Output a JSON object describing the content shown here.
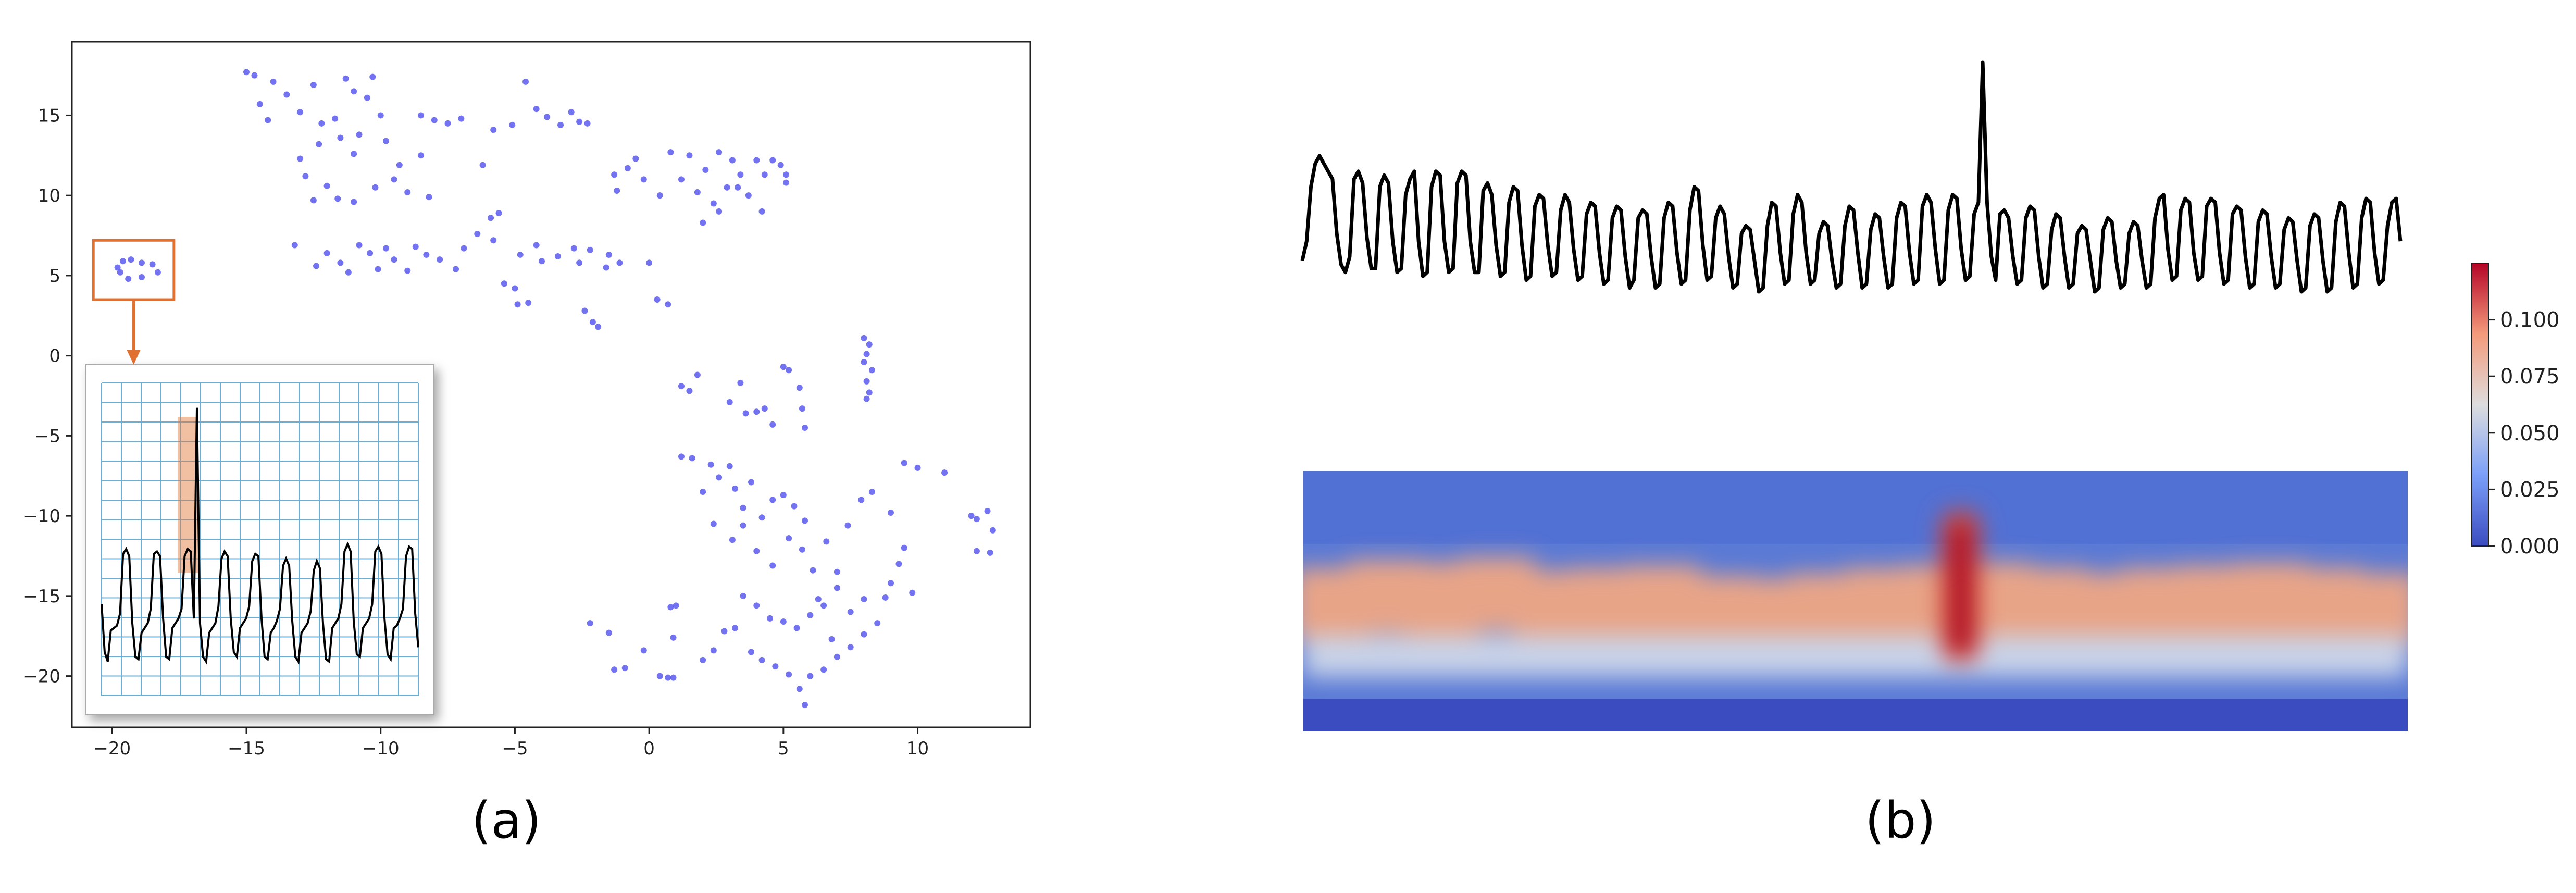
{
  "panel_labels": {
    "a": "(a)",
    "b": "(b)"
  },
  "colors": {
    "points": "#5b5bf0",
    "highlight": "#e07030",
    "line": "#000000",
    "heat_low": "#3b4cc0",
    "heat_mid": "#dddddd",
    "heat_high": "#b40426",
    "grid_inset": "#6aaed6"
  },
  "chart_data": [
    {
      "id": "a-scatter",
      "type": "scatter",
      "title": "",
      "xlabel": "",
      "ylabel": "",
      "xlim": [
        -21.5,
        14.2
      ],
      "ylim": [
        -23.2,
        19.6
      ],
      "xticks": [
        -20,
        -15,
        -10,
        -5,
        0,
        5,
        10
      ],
      "yticks": [
        15,
        10,
        5,
        0,
        -5,
        -10,
        -15,
        -20
      ],
      "xtick_labels": [
        "−20",
        "−15",
        "−10",
        "−5",
        "0",
        "5",
        "10"
      ],
      "ytick_labels": [
        "15",
        "10",
        "5",
        "0",
        "−5",
        "−10",
        "−15",
        "−20"
      ],
      "grid": false,
      "highlight_box": {
        "x": [
          -20.7,
          -17.7
        ],
        "y": [
          3.5,
          7.2
        ]
      },
      "points": [
        [
          -15.0,
          17.7
        ],
        [
          -14.7,
          17.5
        ],
        [
          -14.0,
          17.1
        ],
        [
          -14.5,
          15.7
        ],
        [
          -13.5,
          16.3
        ],
        [
          -12.5,
          16.9
        ],
        [
          -11.3,
          17.3
        ],
        [
          -10.3,
          17.4
        ],
        [
          -11.0,
          16.5
        ],
        [
          -10.5,
          16.1
        ],
        [
          -13.0,
          15.2
        ],
        [
          -14.2,
          14.7
        ],
        [
          -12.2,
          14.5
        ],
        [
          -11.7,
          14.8
        ],
        [
          -10.0,
          15.0
        ],
        [
          -10.8,
          13.8
        ],
        [
          -8.5,
          15.0
        ],
        [
          -8.0,
          14.7
        ],
        [
          -7.5,
          14.5
        ],
        [
          -7.0,
          14.8
        ],
        [
          -12.3,
          13.2
        ],
        [
          -11.5,
          13.6
        ],
        [
          -11.0,
          12.6
        ],
        [
          -9.8,
          13.4
        ],
        [
          -9.3,
          11.9
        ],
        [
          -8.5,
          12.5
        ],
        [
          -13.0,
          12.3
        ],
        [
          -12.8,
          11.2
        ],
        [
          -12.0,
          10.6
        ],
        [
          -11.6,
          9.8
        ],
        [
          -12.5,
          9.7
        ],
        [
          -11.0,
          9.6
        ],
        [
          -10.2,
          10.5
        ],
        [
          -9.5,
          11.0
        ],
        [
          -9.0,
          10.2
        ],
        [
          -8.2,
          9.9
        ],
        [
          -6.2,
          11.9
        ],
        [
          -5.9,
          8.6
        ],
        [
          -5.6,
          8.9
        ],
        [
          -5.1,
          14.4
        ],
        [
          -4.6,
          17.1
        ],
        [
          -4.2,
          15.4
        ],
        [
          -3.8,
          14.9
        ],
        [
          -3.3,
          14.4
        ],
        [
          -2.9,
          15.2
        ],
        [
          -2.6,
          14.6
        ],
        [
          -2.3,
          14.5
        ],
        [
          -5.8,
          14.1
        ],
        [
          -13.2,
          6.9
        ],
        [
          -12.4,
          5.6
        ],
        [
          -12.0,
          6.4
        ],
        [
          -11.5,
          5.8
        ],
        [
          -11.2,
          5.2
        ],
        [
          -10.8,
          6.9
        ],
        [
          -10.4,
          6.4
        ],
        [
          -10.1,
          5.4
        ],
        [
          -9.8,
          6.7
        ],
        [
          -9.5,
          6.0
        ],
        [
          -9.0,
          5.3
        ],
        [
          -8.7,
          6.8
        ],
        [
          -8.3,
          6.3
        ],
        [
          -7.8,
          6.0
        ],
        [
          -7.2,
          5.4
        ],
        [
          -6.9,
          6.7
        ],
        [
          -6.4,
          7.6
        ],
        [
          -5.8,
          7.2
        ],
        [
          -4.8,
          6.3
        ],
        [
          -4.2,
          6.9
        ],
        [
          -4.0,
          5.9
        ],
        [
          -3.4,
          6.2
        ],
        [
          -2.8,
          6.7
        ],
        [
          -2.6,
          5.8
        ],
        [
          -2.2,
          6.6
        ],
        [
          -1.6,
          5.5
        ],
        [
          -1.5,
          6.3
        ],
        [
          -1.1,
          5.8
        ],
        [
          -5.4,
          4.5
        ],
        [
          -5.0,
          4.2
        ],
        [
          -4.9,
          3.2
        ],
        [
          -4.5,
          3.3
        ],
        [
          -2.4,
          2.8
        ],
        [
          -2.1,
          2.1
        ],
        [
          -1.9,
          1.8
        ],
        [
          0.0,
          5.8
        ],
        [
          0.3,
          3.5
        ],
        [
          0.7,
          3.2
        ],
        [
          -1.3,
          11.3
        ],
        [
          -1.2,
          10.3
        ],
        [
          -0.8,
          11.7
        ],
        [
          -0.5,
          12.3
        ],
        [
          -0.2,
          11.0
        ],
        [
          0.4,
          10.0
        ],
        [
          0.8,
          12.7
        ],
        [
          1.2,
          11.0
        ],
        [
          1.5,
          12.5
        ],
        [
          1.8,
          10.2
        ],
        [
          2.1,
          11.6
        ],
        [
          2.4,
          9.5
        ],
        [
          2.6,
          12.7
        ],
        [
          2.9,
          10.5
        ],
        [
          3.1,
          12.2
        ],
        [
          3.4,
          11.3
        ],
        [
          3.7,
          10.0
        ],
        [
          4.0,
          12.2
        ],
        [
          4.3,
          11.3
        ],
        [
          4.6,
          12.2
        ],
        [
          4.9,
          11.9
        ],
        [
          5.1,
          11.3
        ],
        [
          2.0,
          8.3
        ],
        [
          2.6,
          9.0
        ],
        [
          3.3,
          10.5
        ],
        [
          4.2,
          9.0
        ],
        [
          5.1,
          10.8
        ],
        [
          1.2,
          -1.9
        ],
        [
          1.5,
          -2.2
        ],
        [
          1.8,
          -1.2
        ],
        [
          3.0,
          -2.9
        ],
        [
          3.4,
          -1.7
        ],
        [
          3.6,
          -3.6
        ],
        [
          4.0,
          -3.5
        ],
        [
          4.3,
          -3.3
        ],
        [
          4.6,
          -4.3
        ],
        [
          5.0,
          -0.7
        ],
        [
          5.2,
          -0.9
        ],
        [
          5.6,
          -2.0
        ],
        [
          5.7,
          -3.3
        ],
        [
          5.8,
          -4.5
        ],
        [
          8.0,
          1.1
        ],
        [
          8.2,
          0.7
        ],
        [
          8.1,
          0.1
        ],
        [
          8.0,
          -0.4
        ],
        [
          8.3,
          -0.9
        ],
        [
          8.1,
          -1.6
        ],
        [
          8.2,
          -2.3
        ],
        [
          8.1,
          -2.7
        ],
        [
          1.2,
          -6.3
        ],
        [
          1.6,
          -6.4
        ],
        [
          2.0,
          -8.5
        ],
        [
          2.3,
          -6.8
        ],
        [
          2.6,
          -7.6
        ],
        [
          3.0,
          -6.9
        ],
        [
          3.2,
          -8.3
        ],
        [
          3.5,
          -9.5
        ],
        [
          3.8,
          -7.9
        ],
        [
          4.2,
          -10.1
        ],
        [
          4.6,
          -9.0
        ],
        [
          5.0,
          -8.7
        ],
        [
          5.4,
          -9.4
        ],
        [
          5.8,
          -10.3
        ],
        [
          2.4,
          -10.5
        ],
        [
          3.1,
          -11.5
        ],
        [
          3.5,
          -10.6
        ],
        [
          4.0,
          -12.2
        ],
        [
          4.6,
          -13.1
        ],
        [
          5.2,
          -11.4
        ],
        [
          5.7,
          -12.1
        ],
        [
          6.1,
          -13.4
        ],
        [
          6.6,
          -11.6
        ],
        [
          7.0,
          -13.5
        ],
        [
          7.4,
          -10.6
        ],
        [
          7.9,
          -9.0
        ],
        [
          8.3,
          -8.5
        ],
        [
          9.5,
          -6.7
        ],
        [
          10.0,
          -7.0
        ],
        [
          11.0,
          -7.3
        ],
        [
          9.0,
          -9.8
        ],
        [
          9.5,
          -12.0
        ],
        [
          9.3,
          -13.0
        ],
        [
          9.0,
          -14.2
        ],
        [
          9.8,
          -14.8
        ],
        [
          8.8,
          -15.1
        ],
        [
          8.5,
          -16.7
        ],
        [
          8.0,
          -17.4
        ],
        [
          7.5,
          -18.2
        ],
        [
          7.0,
          -18.8
        ],
        [
          6.5,
          -19.6
        ],
        [
          6.0,
          -20.0
        ],
        [
          5.6,
          -20.8
        ],
        [
          5.2,
          -19.9
        ],
        [
          4.7,
          -19.4
        ],
        [
          4.2,
          -19.0
        ],
        [
          3.8,
          -18.5
        ],
        [
          3.2,
          -17.0
        ],
        [
          2.8,
          -17.2
        ],
        [
          2.4,
          -18.4
        ],
        [
          2.0,
          -19.0
        ],
        [
          3.5,
          -15.0
        ],
        [
          4.0,
          -15.6
        ],
        [
          4.5,
          -16.4
        ],
        [
          5.0,
          -16.6
        ],
        [
          5.5,
          -17.0
        ],
        [
          6.0,
          -16.2
        ],
        [
          6.5,
          -15.6
        ],
        [
          7.0,
          -14.5
        ],
        [
          7.5,
          -16.0
        ],
        [
          8.0,
          -15.2
        ],
        [
          6.3,
          -15.2
        ],
        [
          6.8,
          -17.7
        ],
        [
          5.8,
          -21.8
        ],
        [
          1.0,
          -15.6
        ],
        [
          0.8,
          -15.7
        ],
        [
          0.9,
          -17.6
        ],
        [
          -2.2,
          -16.7
        ],
        [
          -1.5,
          -17.3
        ],
        [
          -1.3,
          -19.6
        ],
        [
          -0.9,
          -19.5
        ],
        [
          -0.2,
          -18.4
        ],
        [
          0.4,
          -20.0
        ],
        [
          0.7,
          -20.1
        ],
        [
          0.9,
          -20.1
        ],
        [
          12.0,
          -10.0
        ],
        [
          12.2,
          -10.2
        ],
        [
          12.6,
          -9.7
        ],
        [
          12.2,
          -12.2
        ],
        [
          12.7,
          -12.3
        ],
        [
          12.8,
          -10.9
        ]
      ],
      "cluster_points": [
        [
          -19.8,
          5.5
        ],
        [
          -19.6,
          5.9
        ],
        [
          -19.3,
          6.0
        ],
        [
          -18.9,
          5.8
        ],
        [
          -18.5,
          5.7
        ],
        [
          -18.3,
          5.2
        ],
        [
          -18.9,
          4.9
        ],
        [
          -19.4,
          4.8
        ],
        [
          -19.7,
          5.2
        ]
      ],
      "inset": {
        "type": "line",
        "ylim": [
          -1.2,
          5.0
        ],
        "highlight_x_range": [
          0.24,
          0.305
        ],
        "values": [
          0.6,
          -0.4,
          -0.6,
          0.05,
          0.1,
          0.15,
          0.4,
          1.65,
          1.75,
          1.6,
          0.2,
          -0.5,
          -0.55,
          0.0,
          0.1,
          0.2,
          0.5,
          1.65,
          1.7,
          1.6,
          0.3,
          -0.5,
          -0.55,
          0.1,
          0.2,
          0.3,
          0.5,
          1.6,
          1.75,
          1.7,
          0.3,
          4.7,
          0.2,
          -0.5,
          -0.6,
          0.0,
          0.1,
          0.2,
          0.55,
          1.55,
          1.7,
          1.6,
          0.3,
          -0.4,
          -0.5,
          0.1,
          0.2,
          0.3,
          0.55,
          1.5,
          1.65,
          1.6,
          0.3,
          -0.5,
          -0.55,
          0.0,
          0.1,
          0.25,
          0.5,
          1.4,
          1.55,
          1.4,
          0.25,
          -0.5,
          -0.6,
          0.0,
          0.1,
          0.2,
          0.45,
          1.3,
          1.5,
          1.35,
          0.2,
          -0.55,
          -0.6,
          0.1,
          0.2,
          0.3,
          0.6,
          1.7,
          1.85,
          1.7,
          0.25,
          -0.45,
          -0.5,
          0.1,
          0.2,
          0.3,
          0.6,
          1.7,
          1.8,
          1.65,
          0.3,
          -0.45,
          -0.55,
          0.1,
          0.15,
          0.3,
          0.5,
          1.6,
          1.8,
          1.75,
          0.4,
          -0.3
        ]
      }
    },
    {
      "id": "b-signal",
      "type": "line",
      "title": "",
      "xlabel": "",
      "ylabel": "",
      "values": [
        0.5,
        1.0,
        2.4,
        3.0,
        3.2,
        3.0,
        2.8,
        2.6,
        1.2,
        0.4,
        0.2,
        0.6,
        2.6,
        2.8,
        2.5,
        1.1,
        0.3,
        0.3,
        2.4,
        2.7,
        2.5,
        1.0,
        0.2,
        0.3,
        2.2,
        2.6,
        2.8,
        1.0,
        0.1,
        0.2,
        2.4,
        2.8,
        2.7,
        1.0,
        0.2,
        0.3,
        2.5,
        2.8,
        2.7,
        1.0,
        0.2,
        0.2,
        2.3,
        2.5,
        2.2,
        0.9,
        0.1,
        0.2,
        2.0,
        2.4,
        2.3,
        0.9,
        0.0,
        0.1,
        1.9,
        2.2,
        2.1,
        0.9,
        0.1,
        0.2,
        1.8,
        2.2,
        2.0,
        0.8,
        0.0,
        0.1,
        1.7,
        2.0,
        1.9,
        0.7,
        -0.1,
        0.0,
        1.6,
        1.9,
        1.8,
        0.6,
        -0.2,
        0.0,
        1.6,
        1.8,
        1.7,
        0.6,
        -0.2,
        -0.1,
        1.6,
        2.0,
        1.9,
        0.7,
        -0.1,
        0.0,
        1.8,
        2.4,
        2.3,
        0.9,
        0.0,
        0.1,
        1.6,
        1.9,
        1.7,
        0.6,
        -0.2,
        -0.1,
        1.2,
        1.4,
        1.3,
        0.5,
        -0.3,
        -0.2,
        1.4,
        2.0,
        1.9,
        0.7,
        -0.1,
        0.0,
        1.7,
        2.2,
        2.0,
        0.7,
        -0.1,
        0.0,
        1.2,
        1.5,
        1.4,
        0.5,
        -0.2,
        -0.1,
        1.4,
        1.9,
        1.8,
        0.7,
        -0.2,
        -0.1,
        1.3,
        1.7,
        1.6,
        0.6,
        -0.2,
        -0.1,
        1.6,
        2.0,
        1.9,
        0.7,
        -0.1,
        0.0,
        1.9,
        2.2,
        2.0,
        0.8,
        -0.1,
        0.0,
        1.8,
        2.2,
        2.1,
        0.8,
        0.0,
        0.1,
        1.7,
        2.0,
        5.6,
        2.0,
        0.6,
        0.0,
        1.7,
        1.8,
        1.6,
        0.6,
        -0.1,
        0.0,
        1.6,
        1.9,
        1.8,
        0.6,
        -0.2,
        -0.1,
        1.3,
        1.7,
        1.6,
        0.6,
        -0.2,
        -0.1,
        1.2,
        1.4,
        1.3,
        0.5,
        -0.3,
        -0.2,
        1.3,
        1.6,
        1.5,
        0.5,
        -0.2,
        -0.1,
        1.2,
        1.5,
        1.4,
        0.5,
        -0.2,
        -0.1,
        1.6,
        2.1,
        2.2,
        0.8,
        0.0,
        0.1,
        1.8,
        2.1,
        2.0,
        0.7,
        0.0,
        0.1,
        1.9,
        2.1,
        2.0,
        0.7,
        -0.1,
        0.0,
        1.7,
        1.9,
        1.8,
        0.6,
        -0.2,
        -0.1,
        1.5,
        1.8,
        1.7,
        0.6,
        -0.2,
        -0.1,
        1.3,
        1.6,
        1.5,
        0.5,
        -0.3,
        -0.2,
        1.4,
        1.7,
        1.6,
        0.5,
        -0.3,
        -0.2,
        1.5,
        2.0,
        1.9,
        0.7,
        -0.2,
        -0.1,
        1.6,
        2.1,
        2.0,
        0.7,
        -0.1,
        0.0,
        1.4,
        2.0,
        2.1,
        1.0
      ]
    },
    {
      "id": "b-heatmap",
      "type": "heatmap",
      "title": "",
      "spike_position": 0.595,
      "colorbar": {
        "range": [
          0.0,
          0.125
        ],
        "ticks": [
          0.0,
          0.025,
          0.05,
          0.075,
          0.1
        ],
        "tick_labels": [
          "0.000",
          "0.025",
          "0.050",
          "0.075",
          "0.100"
        ]
      }
    }
  ]
}
